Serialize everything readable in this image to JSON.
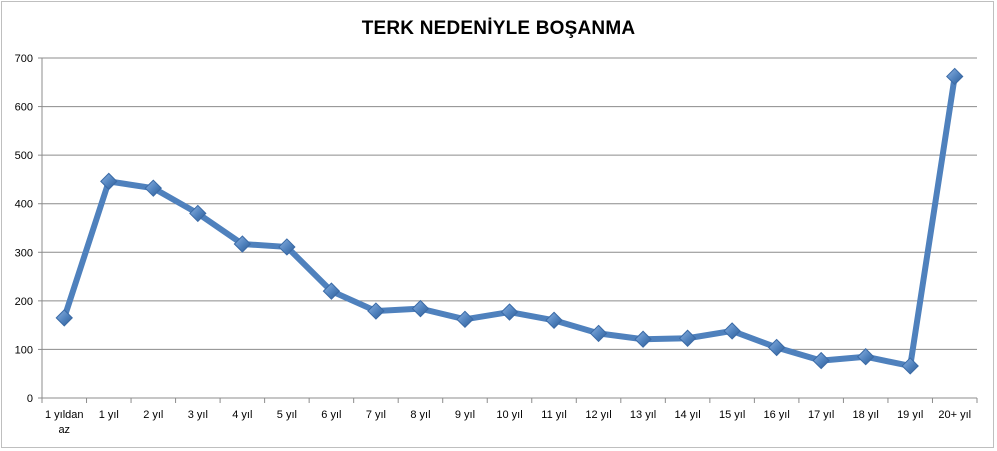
{
  "chart_data": {
    "type": "line",
    "title": "TERK NEDENİYLE BOŞANMA",
    "xlabel": "",
    "ylabel": "",
    "ylim": [
      0,
      700
    ],
    "yticks": [
      0,
      100,
      200,
      300,
      400,
      500,
      600,
      700
    ],
    "grid": true,
    "legend": "none",
    "categories": [
      [
        "1 yıldan",
        "az"
      ],
      [
        "1 yıl"
      ],
      [
        "2 yıl"
      ],
      [
        "3 yıl"
      ],
      [
        "4 yıl"
      ],
      [
        "5 yıl"
      ],
      [
        "6 yıl"
      ],
      [
        "7 yıl"
      ],
      [
        "8 yıl"
      ],
      [
        "9 yıl"
      ],
      [
        "10 yıl"
      ],
      [
        "11 yıl"
      ],
      [
        "12 yıl"
      ],
      [
        "13 yıl"
      ],
      [
        "14 yıl"
      ],
      [
        "15 yıl"
      ],
      [
        "16 yıl"
      ],
      [
        "17 yıl"
      ],
      [
        "18 yıl"
      ],
      [
        "19 yıl"
      ],
      [
        "20+ yıl"
      ]
    ],
    "series": [
      {
        "values": [
          165,
          446,
          432,
          380,
          317,
          311,
          220,
          179,
          184,
          162,
          177,
          160,
          133,
          121,
          123,
          138,
          104,
          77,
          85,
          66,
          662
        ],
        "color": "#4F81BD",
        "marker": "diamond"
      }
    ]
  }
}
